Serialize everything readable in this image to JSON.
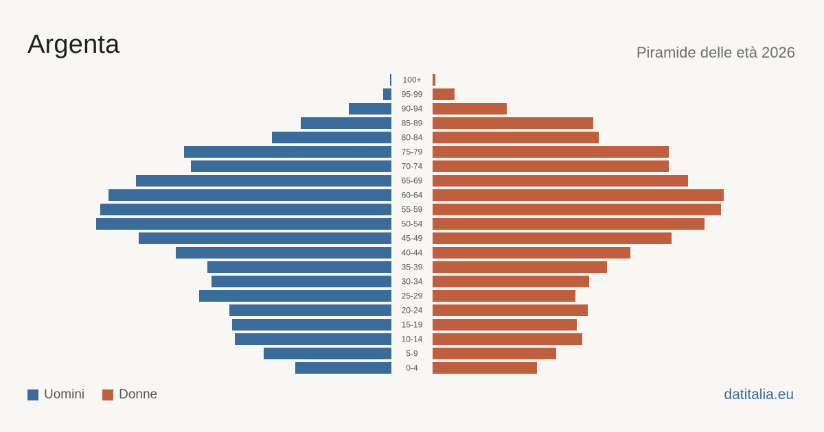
{
  "header": {
    "title": "Argenta",
    "subtitle": "Piramide delle età 2026"
  },
  "legend": {
    "men_label": "Uomini",
    "women_label": "Donne"
  },
  "footer": {
    "brand": "datitalia.eu"
  },
  "colors": {
    "men": "#3b6b9b",
    "women": "#bf5f3e"
  },
  "chart_data": {
    "type": "bar",
    "orientation": "horizontal",
    "subtype": "population-pyramid",
    "categories": [
      "100+",
      "95-99",
      "90-94",
      "85-89",
      "80-84",
      "75-79",
      "70-74",
      "65-69",
      "60-64",
      "55-59",
      "50-54",
      "45-49",
      "40-44",
      "35-39",
      "30-34",
      "25-29",
      "20-24",
      "15-19",
      "10-14",
      "5-9",
      "0-4"
    ],
    "series": [
      {
        "name": "Uomini",
        "values": [
          1,
          6,
          31,
          66,
          87,
          151,
          146,
          186,
          206,
          212,
          215,
          184,
          157,
          134,
          131,
          140,
          118,
          116,
          114,
          93,
          70
        ]
      },
      {
        "name": "Donne",
        "values": [
          2,
          16,
          54,
          117,
          121,
          172,
          172,
          186,
          212,
          210,
          198,
          174,
          144,
          127,
          114,
          104,
          113,
          105,
          109,
          90,
          76
        ]
      }
    ],
    "grid": false,
    "legend_position": "bottom-left"
  }
}
